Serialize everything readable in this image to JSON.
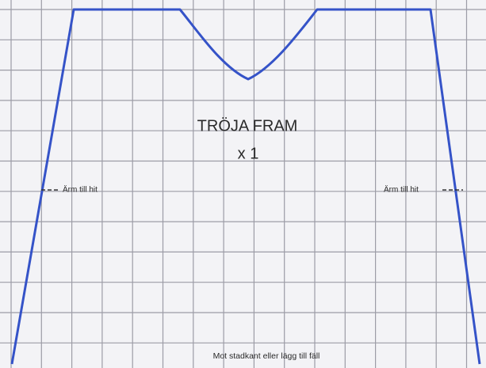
{
  "title": "TRÖJA FRAM",
  "quantity": "x 1",
  "labels": {
    "sleeve_left": "Ärm till hit",
    "sleeve_right": "Ärm till hit",
    "bottom": "Mot stadkant eller lägg till fäll"
  }
}
